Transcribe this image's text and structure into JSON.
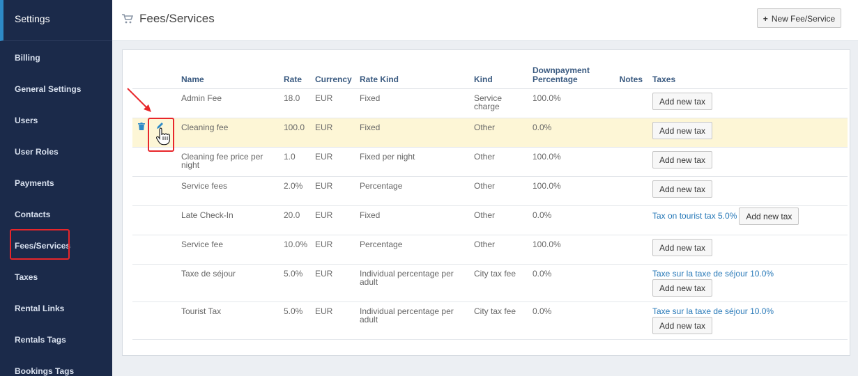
{
  "sidebar": {
    "title": "Settings",
    "items": [
      {
        "label": "Billing"
      },
      {
        "label": "General Settings"
      },
      {
        "label": "Users"
      },
      {
        "label": "User Roles"
      },
      {
        "label": "Payments"
      },
      {
        "label": "Contacts"
      },
      {
        "label": "Fees/Services"
      },
      {
        "label": "Taxes"
      },
      {
        "label": "Rental Links"
      },
      {
        "label": "Rentals Tags"
      },
      {
        "label": "Bookings Tags"
      }
    ]
  },
  "header": {
    "icon": "cart-icon",
    "title": "Fees/Services",
    "new_button_label": "New Fee/Service"
  },
  "table": {
    "columns": [
      "Name",
      "Rate",
      "Currency",
      "Rate Kind",
      "Kind",
      "Downpayment Percentage",
      "Notes",
      "Taxes"
    ],
    "add_tax_label": "Add new tax",
    "rows": [
      {
        "name": "Admin Fee",
        "rate": "18.0",
        "currency": "EUR",
        "rate_kind": "Fixed",
        "kind": "Service charge",
        "downpayment": "100.0%",
        "notes": "",
        "taxes": []
      },
      {
        "name": "Cleaning fee",
        "rate": "100.0",
        "currency": "EUR",
        "rate_kind": "Fixed",
        "kind": "Other",
        "downpayment": "0.0%",
        "notes": "",
        "taxes": []
      },
      {
        "name": "Cleaning fee price per night",
        "rate": "1.0",
        "currency": "EUR",
        "rate_kind": "Fixed per night",
        "kind": "Other",
        "downpayment": "100.0%",
        "notes": "",
        "taxes": []
      },
      {
        "name": "Service fees",
        "rate": "2.0%",
        "currency": "EUR",
        "rate_kind": "Percentage",
        "kind": "Other",
        "downpayment": "100.0%",
        "notes": "",
        "taxes": []
      },
      {
        "name": "Late Check-In",
        "rate": "20.0",
        "currency": "EUR",
        "rate_kind": "Fixed",
        "kind": "Other",
        "downpayment": "0.0%",
        "notes": "",
        "taxes": [
          "Tax on tourist tax 5.0%"
        ]
      },
      {
        "name": "Service fee",
        "rate": "10.0%",
        "currency": "EUR",
        "rate_kind": "Percentage",
        "kind": "Other",
        "downpayment": "100.0%",
        "notes": "",
        "taxes": []
      },
      {
        "name": "Taxe de séjour",
        "rate": "5.0%",
        "currency": "EUR",
        "rate_kind": "Individual percentage per adult",
        "kind": "City tax fee",
        "downpayment": "0.0%",
        "notes": "",
        "taxes": [
          "Taxe sur la taxe de séjour 10.0%"
        ]
      },
      {
        "name": "Tourist Tax",
        "rate": "5.0%",
        "currency": "EUR",
        "rate_kind": "Individual percentage per adult",
        "kind": "City tax fee",
        "downpayment": "0.0%",
        "notes": "",
        "taxes": [
          "Taxe sur la taxe de séjour 10.0%"
        ]
      }
    ]
  },
  "colors": {
    "sidebar_bg": "#1b2a4a",
    "highlight_row": "#fdf6d6",
    "annotation_red": "#e8262a",
    "link_blue": "#2879b8",
    "header_blue": "#3a5a80"
  }
}
